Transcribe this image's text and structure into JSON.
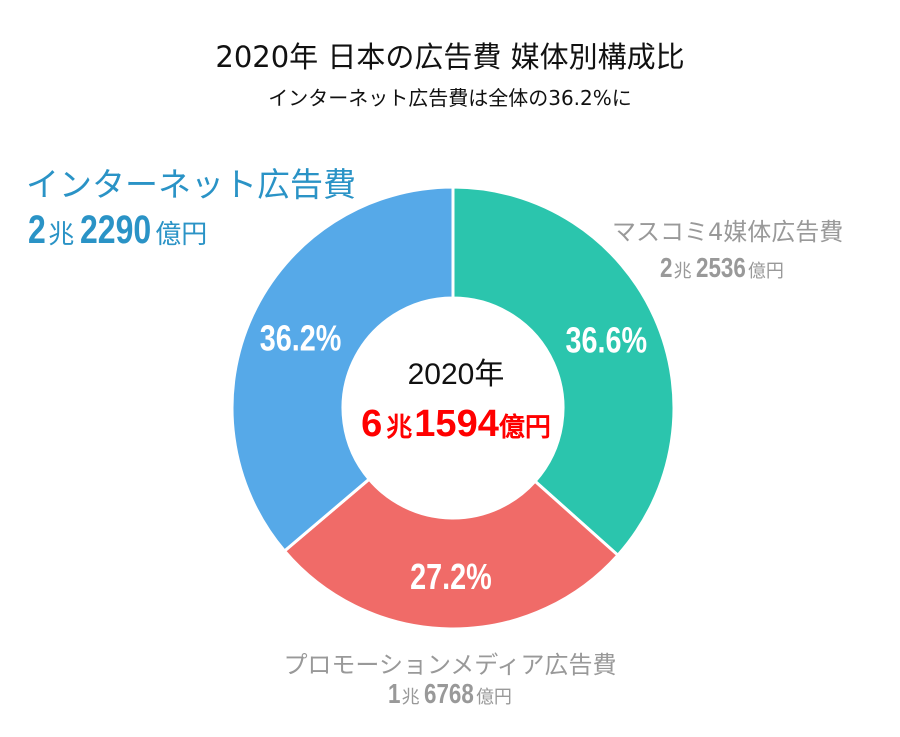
{
  "chart_data": {
    "type": "pie",
    "donut": true,
    "title": "2020年 日本の広告費 媒体別構成比",
    "subtitle": "インターネット広告費は全体の36.2%に",
    "center": {
      "year": "2020年",
      "total": {
        "cho": "6",
        "cho_unit": "兆",
        "oku": "1594",
        "oku_unit": "億円"
      }
    },
    "categories": [
      "マスコミ4媒体広告費",
      "プロモーションメディア広告費",
      "インターネット広告費"
    ],
    "values": [
      36.6,
      27.2,
      36.2
    ],
    "value_labels": [
      "36.6%",
      "27.2%",
      "36.2%"
    ],
    "amounts": [
      {
        "cho": "2",
        "cho_unit": "兆",
        "oku": "2536",
        "oku_unit": "億円"
      },
      {
        "cho": "1",
        "cho_unit": "兆",
        "oku": "6768",
        "oku_unit": "億円"
      },
      {
        "cho": "2",
        "cho_unit": "兆",
        "oku": "2290",
        "oku_unit": "億円"
      }
    ],
    "colors": [
      "#2bc5ad",
      "#f06b68",
      "#56a9e8"
    ],
    "start": "top",
    "direction": "clockwise"
  }
}
